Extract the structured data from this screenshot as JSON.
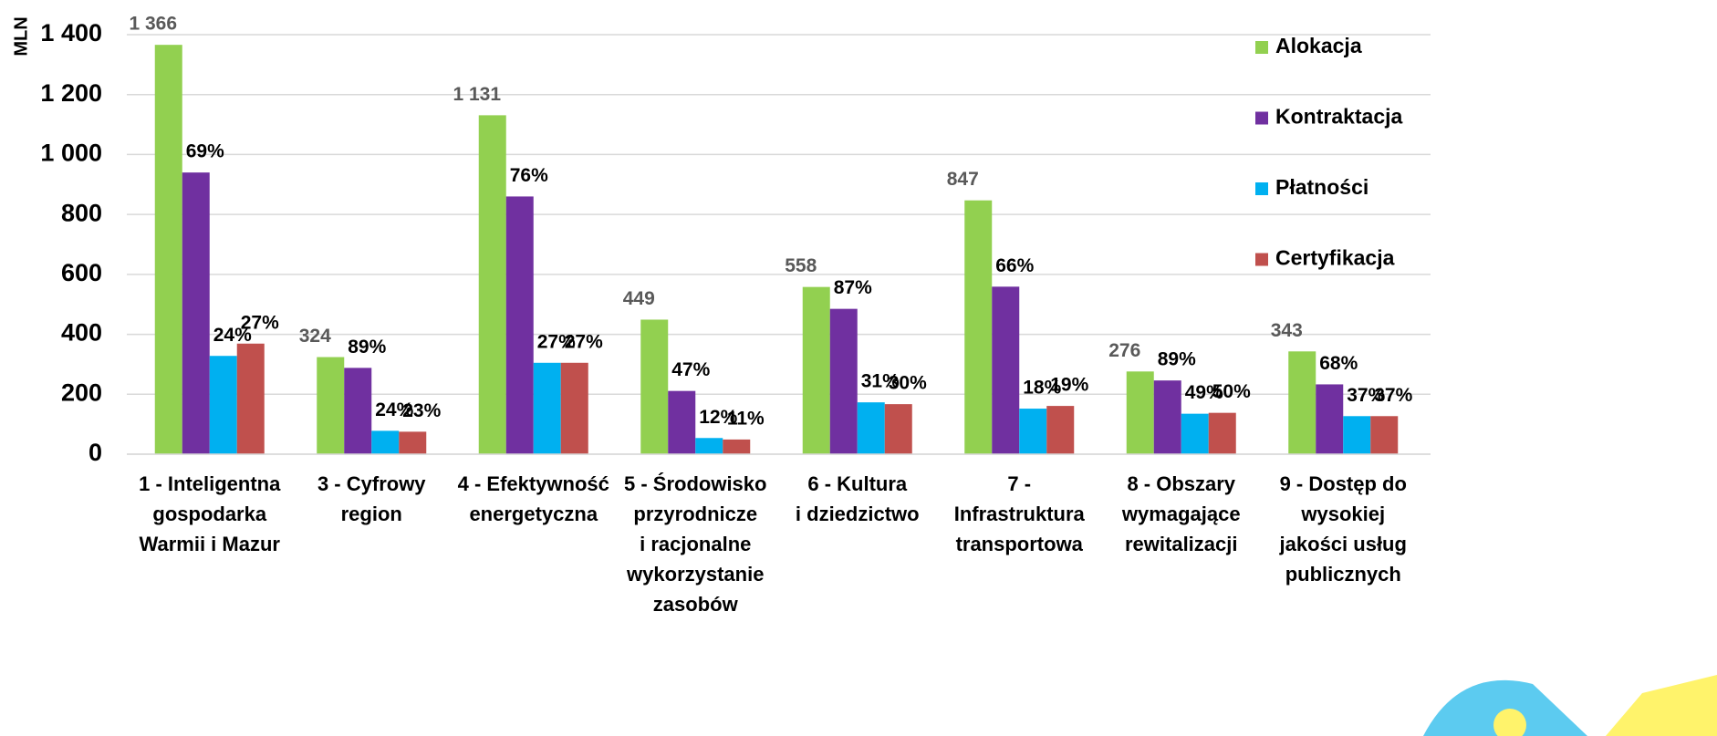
{
  "chart_data": {
    "type": "bar",
    "y_label": "MLN",
    "categories": [
      [
        "1 - Inteligentna",
        "gospodarka",
        "Warmii i Mazur"
      ],
      [
        "3 - Cyfrowy",
        "region"
      ],
      [
        "4 - Efektywność",
        "energetyczna"
      ],
      [
        "5 - Środowisko",
        "przyrodnicze",
        "i racjonalne",
        "wykorzystanie",
        "zasobów"
      ],
      [
        "6 - Kultura",
        "i dziedzictwo"
      ],
      [
        "7 -",
        "Infrastruktura",
        "transportowa"
      ],
      [
        "8 - Obszary",
        "wymagające",
        "rewitalizacji"
      ],
      [
        "9 - Dostęp do",
        "wysokiej",
        "jakości usług",
        "publicznych"
      ]
    ],
    "series": [
      {
        "name": "Alokacja",
        "color": "#92d050",
        "values": [
          1366,
          324,
          1131,
          449,
          558,
          847,
          276,
          343
        ],
        "value_labels": [
          "1 366",
          "324",
          "1 131",
          "449",
          "558",
          "847",
          "276",
          "343"
        ]
      },
      {
        "name": "Kontraktacja",
        "color": "#7030a0",
        "values": [
          940,
          288,
          860,
          211,
          485,
          559,
          246,
          233
        ],
        "labels": [
          "69%",
          "89%",
          "76%",
          "47%",
          "87%",
          "66%",
          "89%",
          "68%"
        ]
      },
      {
        "name": "Płatności",
        "color": "#00b0f0",
        "values": [
          328,
          78,
          305,
          54,
          173,
          152,
          135,
          127
        ],
        "labels": [
          "24%",
          "24%",
          "27%",
          "12%",
          "31%",
          "18%",
          "49%",
          "37%"
        ]
      },
      {
        "name": "Certyfikacja",
        "color": "#c0504d",
        "values": [
          369,
          75,
          305,
          49,
          167,
          161,
          138,
          127
        ],
        "labels": [
          "27%",
          "23%",
          "27%",
          "11%",
          "30%",
          "19%",
          "50%",
          "37%"
        ]
      }
    ],
    "ylim": [
      0,
      1400
    ],
    "yticks": [
      0,
      200,
      400,
      600,
      800,
      {
        "value": 1000,
        "label": "1 000"
      },
      {
        "value": 1200,
        "label": "1 200"
      },
      {
        "value": 1400,
        "label": "1 400"
      }
    ],
    "grid": true,
    "legend": "right"
  }
}
